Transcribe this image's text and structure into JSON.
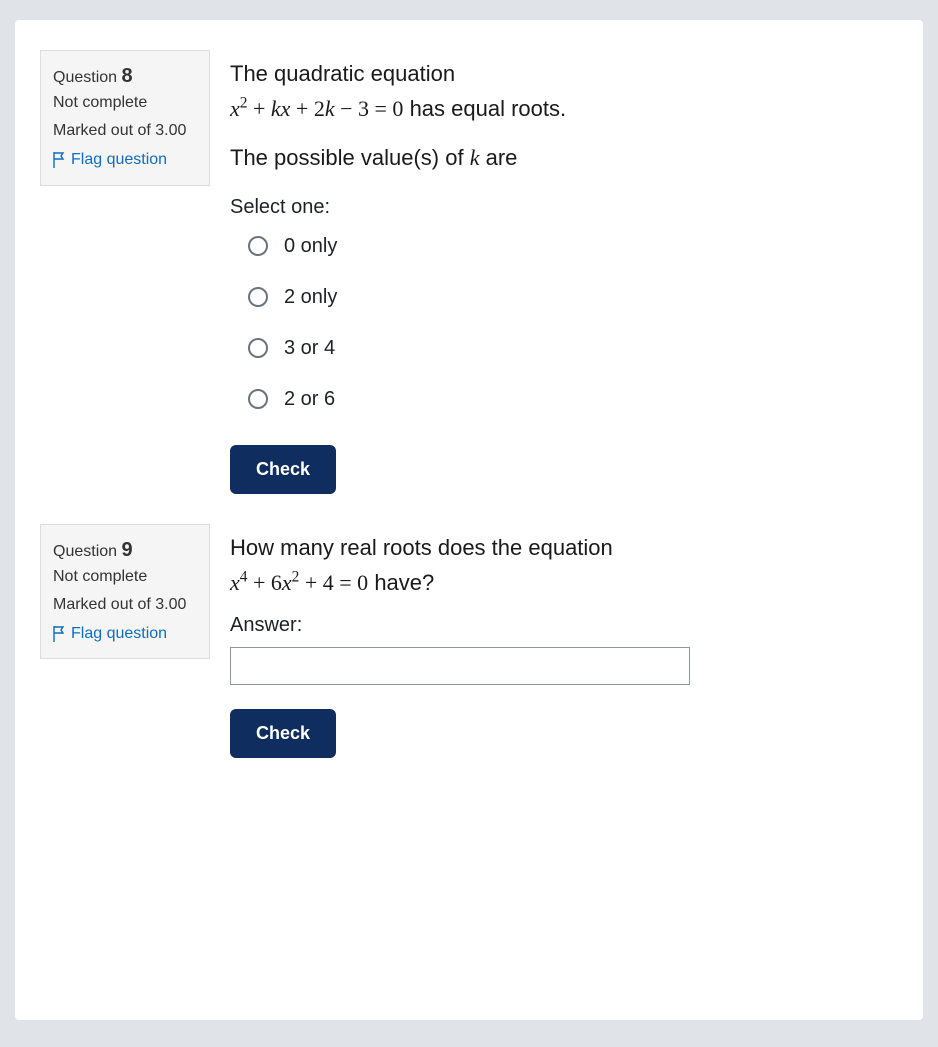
{
  "colors": {
    "page_bg": "#e0e4e8",
    "panel_bg": "#ffffff",
    "info_bg": "#f5f5f5",
    "info_border": "#dcdcdc",
    "link": "#0f6cbf",
    "button_bg": "#0f2d5f",
    "button_text": "#ffffff",
    "radio_border": "#6a737b",
    "text": "#1d2125"
  },
  "questions": [
    {
      "info": {
        "label_prefix": "Question",
        "number": "8",
        "status": "Not complete",
        "marks_prefix": "Marked out of",
        "marks_value": "3.00",
        "flag_label": "Flag question"
      },
      "prompt": {
        "line1_pre": "The quadratic equation",
        "equation_html": "<span class='var'>x</span><sup>2</sup> + <span class='var'>k</span><span class='var'>x</span> + 2<span class='var'>k</span> − 3 = 0",
        "line1_post": "has equal roots.",
        "line2_pre": "The possible value(s) of",
        "line2_var_html": "<span class='var'>k</span>",
        "line2_post": "are"
      },
      "select_label": "Select one:",
      "options": [
        "0 only",
        "2 only",
        "3 or 4",
        "2 or 6"
      ],
      "check_label": "Check"
    },
    {
      "info": {
        "label_prefix": "Question",
        "number": "9",
        "status": "Not complete",
        "marks_prefix": "Marked out of",
        "marks_value": "3.00",
        "flag_label": "Flag question"
      },
      "prompt": {
        "line1_pre": "How many real roots does the equation",
        "equation_html": "<span class='var'>x</span><sup>4</sup> + 6<span class='var'>x</span><sup>2</sup> + 4 = 0",
        "line1_post": "have?"
      },
      "answer_label": "Answer:",
      "answer_value": "",
      "check_label": "Check"
    }
  ]
}
